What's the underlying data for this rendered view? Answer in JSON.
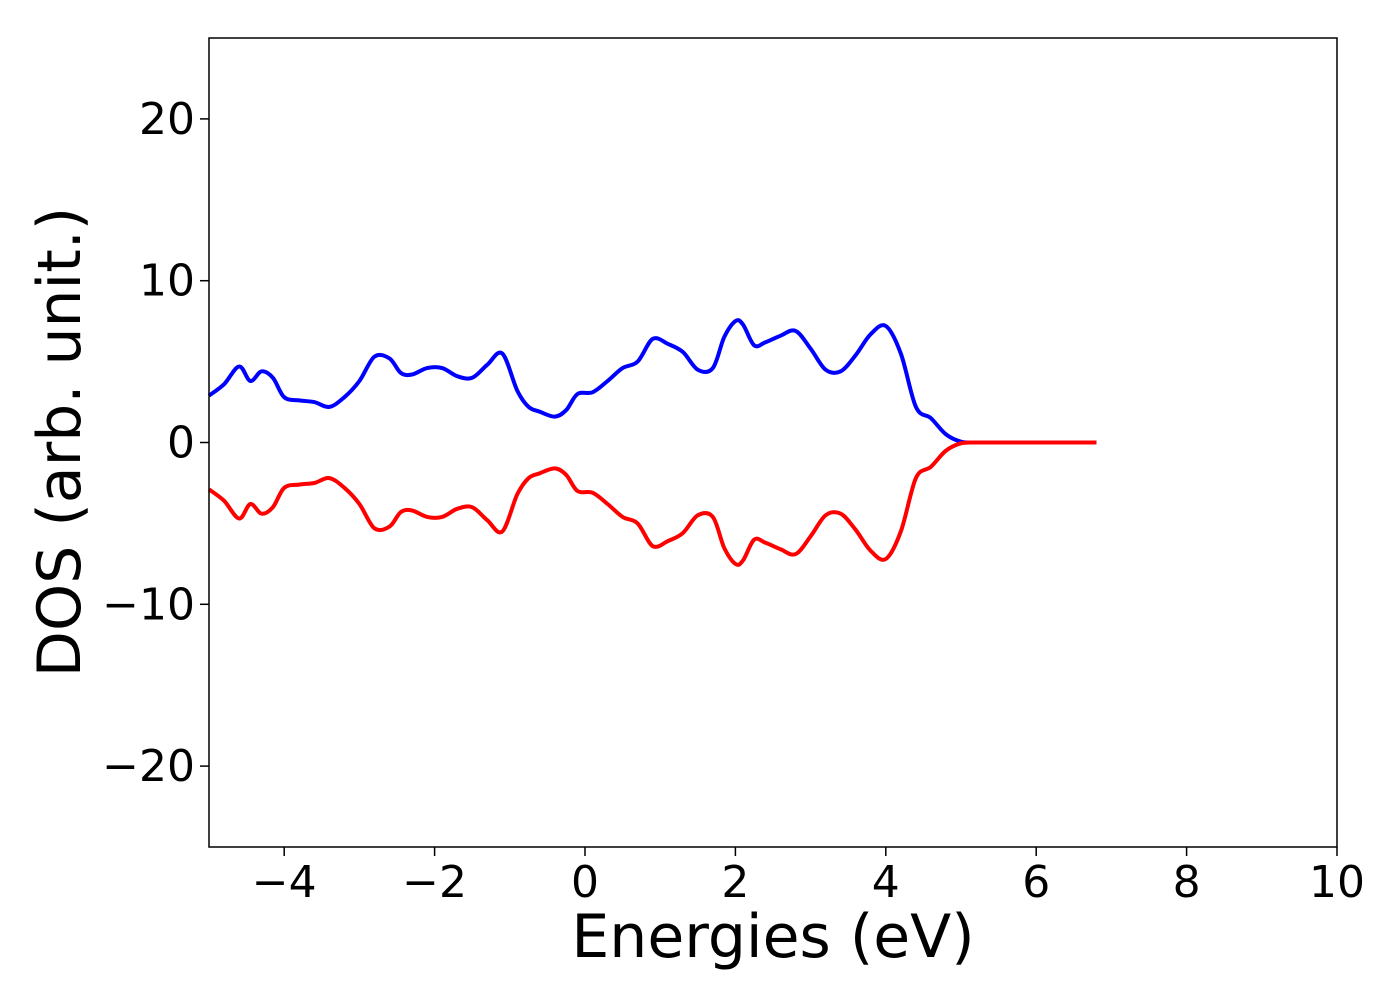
{
  "chart_data": {
    "type": "line",
    "title": "",
    "xlabel": "Energies (eV)",
    "ylabel": "DOS (arb. unit.)",
    "xlim": [
      -5,
      10
    ],
    "ylim": [
      -25,
      25
    ],
    "x_ticks": [
      -4,
      -2,
      0,
      2,
      4,
      6,
      8,
      10
    ],
    "y_ticks": [
      -20,
      -10,
      0,
      10,
      20
    ],
    "x_tick_labels": [
      "−4",
      "−2",
      "0",
      "2",
      "4",
      "6",
      "8",
      "10"
    ],
    "y_tick_labels": [
      "−20",
      "−10",
      "0",
      "10",
      "20"
    ],
    "grid": false,
    "legend": "none",
    "series": [
      {
        "color": "#0000ff",
        "x": [
          -5.0,
          -4.8,
          -4.6,
          -4.45,
          -4.3,
          -4.15,
          -4.0,
          -3.8,
          -3.6,
          -3.4,
          -3.2,
          -3.0,
          -2.8,
          -2.6,
          -2.45,
          -2.3,
          -2.1,
          -1.9,
          -1.7,
          -1.5,
          -1.3,
          -1.1,
          -0.9,
          -0.75,
          -0.6,
          -0.4,
          -0.25,
          -0.1,
          0.1,
          0.3,
          0.5,
          0.7,
          0.9,
          1.1,
          1.3,
          1.5,
          1.7,
          1.85,
          2.0,
          2.1,
          2.25,
          2.4,
          2.6,
          2.8,
          3.0,
          3.2,
          3.4,
          3.6,
          3.8,
          4.0,
          4.2,
          4.4,
          4.6,
          4.8,
          5.0,
          5.2,
          5.5,
          6.0,
          6.5,
          6.8
        ],
        "y": [
          2.9,
          3.6,
          4.7,
          3.8,
          4.4,
          4.0,
          2.8,
          2.6,
          2.5,
          2.2,
          2.8,
          3.8,
          5.3,
          5.2,
          4.3,
          4.2,
          4.6,
          4.6,
          4.1,
          4.0,
          4.8,
          5.5,
          3.2,
          2.2,
          1.9,
          1.6,
          2.0,
          3.0,
          3.1,
          3.8,
          4.6,
          5.0,
          6.4,
          6.1,
          5.6,
          4.5,
          4.6,
          6.5,
          7.5,
          7.3,
          6.0,
          6.2,
          6.6,
          6.9,
          5.8,
          4.5,
          4.4,
          5.4,
          6.7,
          7.2,
          5.5,
          2.2,
          1.5,
          0.5,
          0.05,
          0.0,
          0.0,
          0.0,
          0.0,
          0.0
        ]
      },
      {
        "color": "#ff0000",
        "x": [
          -5.0,
          -4.8,
          -4.6,
          -4.45,
          -4.3,
          -4.15,
          -4.0,
          -3.8,
          -3.6,
          -3.4,
          -3.2,
          -3.0,
          -2.8,
          -2.6,
          -2.45,
          -2.3,
          -2.1,
          -1.9,
          -1.7,
          -1.5,
          -1.3,
          -1.1,
          -0.9,
          -0.75,
          -0.6,
          -0.4,
          -0.25,
          -0.1,
          0.1,
          0.3,
          0.5,
          0.7,
          0.9,
          1.1,
          1.3,
          1.5,
          1.7,
          1.85,
          2.0,
          2.1,
          2.25,
          2.4,
          2.6,
          2.8,
          3.0,
          3.2,
          3.4,
          3.6,
          3.8,
          4.0,
          4.2,
          4.4,
          4.6,
          4.8,
          5.0,
          5.2,
          5.5,
          6.0,
          6.5,
          6.8
        ],
        "y": [
          -2.9,
          -3.6,
          -4.7,
          -3.8,
          -4.4,
          -4.0,
          -2.8,
          -2.6,
          -2.5,
          -2.2,
          -2.8,
          -3.8,
          -5.3,
          -5.2,
          -4.3,
          -4.2,
          -4.6,
          -4.6,
          -4.1,
          -4.0,
          -4.8,
          -5.5,
          -3.2,
          -2.2,
          -1.9,
          -1.6,
          -2.0,
          -3.0,
          -3.1,
          -3.8,
          -4.6,
          -5.0,
          -6.4,
          -6.1,
          -5.6,
          -4.5,
          -4.6,
          -6.5,
          -7.5,
          -7.3,
          -6.0,
          -6.2,
          -6.6,
          -6.9,
          -5.8,
          -4.5,
          -4.4,
          -5.4,
          -6.7,
          -7.2,
          -5.5,
          -2.2,
          -1.5,
          -0.5,
          -0.05,
          0.0,
          0.0,
          0.0,
          0.0,
          0.0
        ]
      }
    ]
  }
}
